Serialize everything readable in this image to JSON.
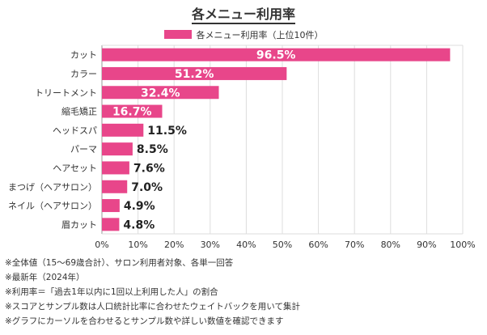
{
  "chart_data": {
    "type": "bar",
    "orientation": "horizontal",
    "title": "各メニュー利用率",
    "categories": [
      "カット",
      "カラー",
      "トリートメント",
      "縮毛矯正",
      "ヘッドスパ",
      "パーマ",
      "ヘアセット",
      "まつげ（ヘアサロン）",
      "ネイル（ヘアサロン）",
      "眉カット"
    ],
    "series": [
      {
        "name": "各メニュー利用率（上位10件）",
        "values": [
          96.5,
          51.2,
          32.4,
          16.7,
          11.5,
          8.5,
          7.6,
          7.0,
          4.9,
          4.8
        ]
      }
    ],
    "value_labels": [
      "96.5%",
      "51.2%",
      "32.4%",
      "16.7%",
      "11.5%",
      "8.5%",
      "7.6%",
      "7.0%",
      "4.9%",
      "4.8%"
    ],
    "xlim": [
      0,
      100
    ],
    "x_ticks": [
      "0%",
      "10%",
      "20%",
      "30%",
      "40%",
      "50%",
      "60%",
      "70%",
      "80%",
      "90%",
      "100%"
    ],
    "grid": true,
    "legend_position": "top-center",
    "bar_color": "#e8468a"
  },
  "notes": [
    "※全体値（15〜69歳合計）、サロン利用者対象、各単一回答",
    "※最新年（2024年）",
    "※利用率＝「過去1年以内に1回以上利用した人」の割合",
    "※スコアとサンプル数は人口統計比率に合わせたウェイトバックを用いて集計",
    "※グラフにカーソルを合わせるとサンプル数や詳しい数値を確認できます"
  ]
}
